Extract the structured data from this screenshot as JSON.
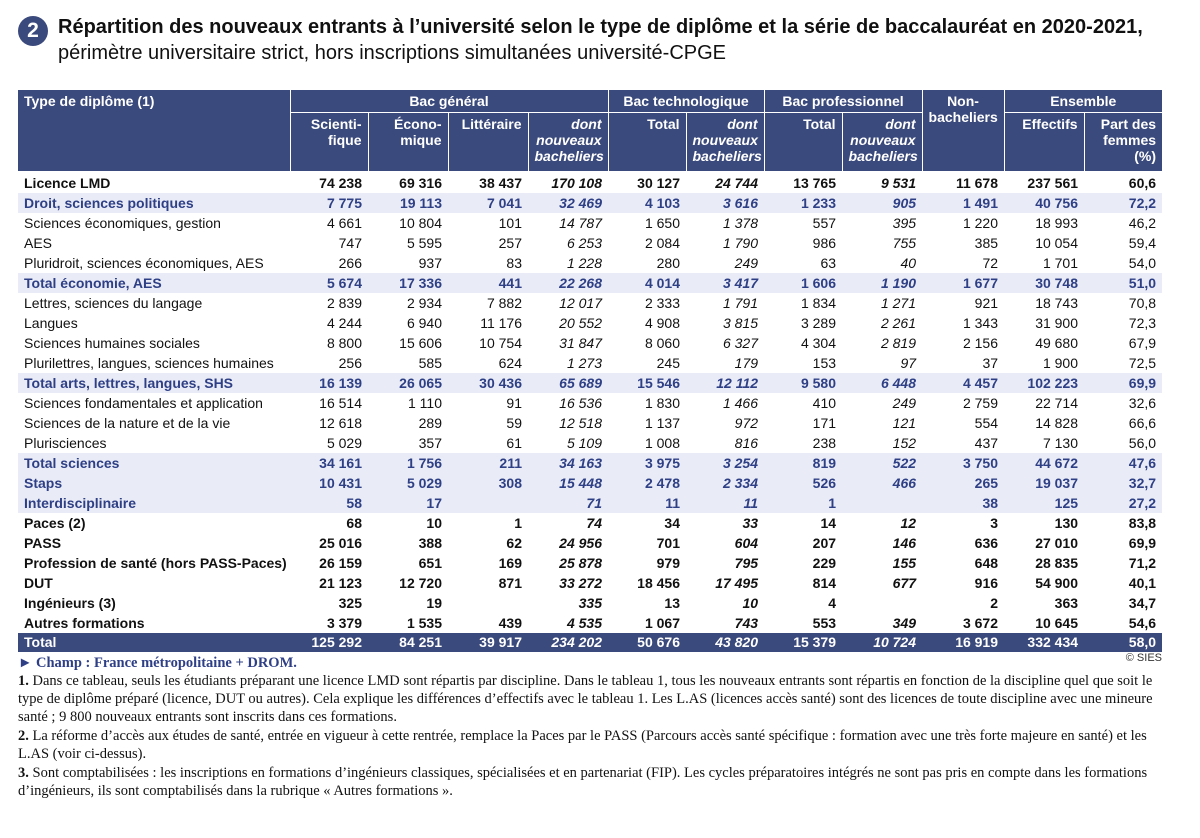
{
  "header": {
    "number": "2",
    "title": "Répartition des nouveaux entrants à l’université selon le type de diplôme et la série de baccalauréat en 2020-2021,",
    "subtitle": " périmètre universitaire strict, hors inscriptions simultanées université-CPGE"
  },
  "table": {
    "group_headers": [
      "Type de diplôme (1)",
      "Bac général",
      "Bac technologique",
      "Bac professionnel",
      "Non-\nbacheliers",
      "Ensemble"
    ],
    "sub_headers": [
      "Scienti-\nfique",
      "Écono-\nmique",
      "Littéraire",
      "dont\nnouveaux\nbacheliers",
      "Total",
      "dont\nnouveaux\nbacheliers",
      "Total",
      "dont\nnouveaux\nbacheliers",
      "Effectifs",
      "Part des\nfemmes\n(%)"
    ],
    "rows": [
      [
        "Licence LMD",
        "74 238",
        "69 316",
        "38 437",
        "170 108",
        "30 127",
        "24 744",
        "13 765",
        "9 531",
        "11 678",
        "237 561",
        "60,6"
      ],
      [
        "Droit, sciences politiques",
        "7 775",
        "19 113",
        "7 041",
        "32 469",
        "4 103",
        "3 616",
        "1 233",
        "905",
        "1 491",
        "40 756",
        "72,2"
      ],
      [
        "Sciences économiques, gestion",
        "4 661",
        "10 804",
        "101",
        "14 787",
        "1 650",
        "1 378",
        "557",
        "395",
        "1 220",
        "18 993",
        "46,2"
      ],
      [
        "AES",
        "747",
        "5 595",
        "257",
        "6 253",
        "2 084",
        "1 790",
        "986",
        "755",
        "385",
        "10 054",
        "59,4"
      ],
      [
        "Pluridroit, sciences économiques, AES",
        "266",
        "937",
        "83",
        "1 228",
        "280",
        "249",
        "63",
        "40",
        "72",
        "1 701",
        "54,0"
      ],
      [
        "Total économie, AES",
        "5 674",
        "17 336",
        "441",
        "22 268",
        "4 014",
        "3 417",
        "1 606",
        "1 190",
        "1 677",
        "30 748",
        "51,0"
      ],
      [
        "Lettres, sciences du langage",
        "2 839",
        "2 934",
        "7 882",
        "12 017",
        "2 333",
        "1 791",
        "1 834",
        "1 271",
        "921",
        "18 743",
        "70,8"
      ],
      [
        "Langues",
        "4 244",
        "6 940",
        "11 176",
        "20 552",
        "4 908",
        "3 815",
        "3 289",
        "2 261",
        "1 343",
        "31 900",
        "72,3"
      ],
      [
        "Sciences humaines sociales",
        "8 800",
        "15 606",
        "10 754",
        "31 847",
        "8 060",
        "6 327",
        "4 304",
        "2 819",
        "2 156",
        "49 680",
        "67,9"
      ],
      [
        "Plurilettres, langues, sciences humaines",
        "256",
        "585",
        "624",
        "1 273",
        "245",
        "179",
        "153",
        "97",
        "37",
        "1 900",
        "72,5"
      ],
      [
        "Total arts, lettres, langues, SHS",
        "16 139",
        "26 065",
        "30 436",
        "65 689",
        "15 546",
        "12 112",
        "9 580",
        "6 448",
        "4 457",
        "102 223",
        "69,9"
      ],
      [
        "Sciences fondamentales et application",
        "16 514",
        "1 110",
        "91",
        "16 536",
        "1 830",
        "1 466",
        "410",
        "249",
        "2 759",
        "22 714",
        "32,6"
      ],
      [
        "Sciences de la nature et de la vie",
        "12 618",
        "289",
        "59",
        "12 518",
        "1 137",
        "972",
        "171",
        "121",
        "554",
        "14 828",
        "66,6"
      ],
      [
        "Plurisciences",
        "5 029",
        "357",
        "61",
        "5 109",
        "1 008",
        "816",
        "238",
        "152",
        "437",
        "7 130",
        "56,0"
      ],
      [
        "Total sciences",
        "34 161",
        "1 756",
        "211",
        "34 163",
        "3 975",
        "3 254",
        "819",
        "522",
        "3 750",
        "44 672",
        "47,6"
      ],
      [
        "Staps",
        "10 431",
        "5 029",
        "308",
        "15 448",
        "2 478",
        "2 334",
        "526",
        "466",
        "265",
        "19 037",
        "32,7"
      ],
      [
        "Interdisciplinaire",
        "58",
        "17",
        null,
        "71",
        "11",
        "11",
        "1",
        null,
        "38",
        "125",
        "27,2"
      ],
      [
        "Paces (2)",
        "68",
        "10",
        "1",
        "74",
        "34",
        "33",
        "14",
        "12",
        "3",
        "130",
        "83,8"
      ],
      [
        "PASS",
        "25 016",
        "388",
        "62",
        "24 956",
        "701",
        "604",
        "207",
        "146",
        "636",
        "27 010",
        "69,9"
      ],
      [
        "Profession de santé (hors PASS-Paces)",
        "26 159",
        "651",
        "169",
        "25 878",
        "979",
        "795",
        "229",
        "155",
        "648",
        "28 835",
        "71,2"
      ],
      [
        "DUT",
        "21 123",
        "12 720",
        "871",
        "33 272",
        "18 456",
        "17 495",
        "814",
        "677",
        "916",
        "54 900",
        "40,1"
      ],
      [
        "Ingénieurs (3)",
        "325",
        "19",
        null,
        "335",
        "13",
        "10",
        "4",
        null,
        "2",
        "363",
        "34,7"
      ],
      [
        "Autres formations",
        "3 379",
        "1 535",
        "439",
        "4 535",
        "1 067",
        "743",
        "553",
        "349",
        "3 672",
        "10 645",
        "54,6"
      ]
    ],
    "total": [
      "Total",
      "125 292",
      "84 251",
      "39 917",
      "234 202",
      "50 676",
      "43 820",
      "15 379",
      "10 724",
      "16 919",
      "332 434",
      "58,0"
    ]
  },
  "notes": {
    "champ": "► Champ : France métropolitaine + DROM.",
    "source": "© SIES",
    "items": [
      {
        "num": "1.",
        "text": "Dans ce tableau, seuls les étudiants préparant une licence LMD sont répartis par discipline. Dans le tableau 1, tous les nouveaux entrants sont répartis en fonction de la discipline quel que soit le type de diplôme préparé (licence, DUT ou autres). Cela explique les différences d’effectifs avec le tableau 1. Les L.AS (licences accès santé) sont des licences de toute discipline avec une mineure santé ; 9 800 nouveaux entrants sont inscrits dans ces formations."
      },
      {
        "num": "2.",
        "text": "La réforme d’accès aux études de santé, entrée en vigueur à cette rentrée, remplace la Paces par le PASS (Parcours accès santé spécifique : formation avec une très forte majeure en santé) et les L.AS (voir ci-dessus)."
      },
      {
        "num": "3.",
        "text": "Sont comptabilisées : les inscriptions en formations d’ingénieurs classiques, spécialisées et en partenariat (FIP). Les cycles préparatoires intégrés ne sont pas pris en compte dans les formations d’ingénieurs, ils sont comptabilisés dans la rubrique « Autres formations »."
      }
    ]
  }
}
